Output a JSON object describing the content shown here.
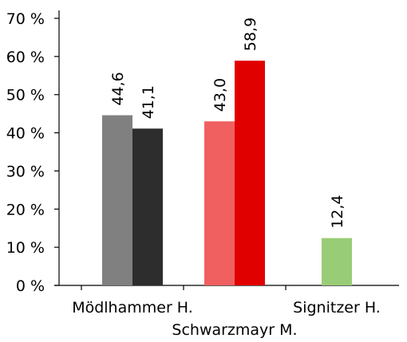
{
  "chart_data": {
    "type": "bar",
    "categories": [
      "Mödlhammer H.",
      "Schwarzmayr M.",
      "Signitzer H."
    ],
    "series": [
      {
        "values": [
          44.6,
          43.0,
          null
        ],
        "labels": [
          "44,6",
          "43,0",
          ""
        ],
        "colors": [
          "#808080",
          "#f06060",
          null
        ]
      },
      {
        "values": [
          41.1,
          58.9,
          12.4
        ],
        "labels": [
          "41,1",
          "58,9",
          "12,4"
        ],
        "colors": [
          "#2d2d2d",
          "#e10000",
          "#99cc77"
        ]
      }
    ],
    "ylim": [
      0,
      70
    ],
    "yticks": [
      0,
      10,
      20,
      30,
      40,
      50,
      60,
      70
    ],
    "ytick_labels": [
      "0 %",
      "10 %",
      "20 %",
      "30 %",
      "40 %",
      "50 %",
      "60 %",
      "70 %"
    ],
    "grid": false,
    "legend": "none"
  }
}
